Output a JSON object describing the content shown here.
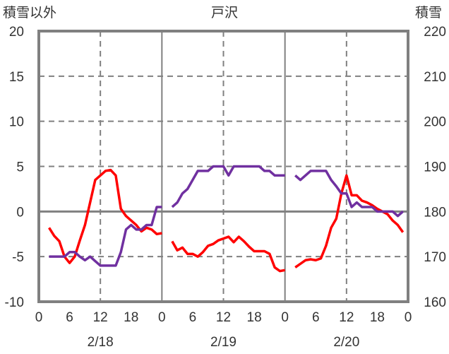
{
  "chart_data": {
    "type": "line",
    "title": "戸沢",
    "left_axis_label": "積雪以外",
    "right_axis_label": "積雪",
    "left_ylim": [
      -10,
      20
    ],
    "right_ylim": [
      160,
      220
    ],
    "left_ticks": [
      "20",
      "15",
      "10",
      "5",
      "0",
      "-5",
      "-10"
    ],
    "right_ticks": [
      "220",
      "210",
      "200",
      "190",
      "180",
      "170",
      "160"
    ],
    "x_ticks": [
      "0",
      "6",
      "12",
      "18",
      "0",
      "6",
      "12",
      "18",
      "0",
      "6",
      "12",
      "18",
      "0"
    ],
    "day_labels": [
      "2/18",
      "2/19",
      "2/20"
    ],
    "xlim_hours": [
      0,
      72
    ],
    "series": [
      {
        "name": "積雪以外",
        "axis": "left",
        "color": "#ff0000",
        "segments": [
          {
            "start": 2,
            "values": [
              -1.8,
              -2.7,
              -3.3,
              -5.0,
              -5.7,
              -5.0,
              -3.2,
              -1.5,
              1.0,
              3.5,
              4.0,
              4.5,
              4.6,
              4.0,
              0.3,
              -0.5,
              -1.0,
              -1.5,
              -2.2,
              -1.8,
              -2.0,
              -2.5,
              -2.4
            ]
          },
          {
            "start": 26,
            "values": [
              -3.3,
              -4.3,
              -4.0,
              -4.7,
              -4.7,
              -5.0,
              -4.5,
              -3.8,
              -3.6,
              -3.2,
              -3.0,
              -2.8,
              -3.4,
              -2.8,
              -3.3,
              -3.9,
              -4.4,
              -4.4,
              -4.4,
              -4.7,
              -6.2,
              -6.6,
              -6.5
            ]
          },
          {
            "start": 50,
            "values": [
              -6.2,
              -5.8,
              -5.4,
              -5.3,
              -5.4,
              -5.2,
              -3.8,
              -1.8,
              -0.8,
              2.0,
              4.0,
              1.8,
              1.8,
              1.2,
              1.0,
              0.7,
              0.3,
              0.0,
              -0.3,
              -1.0,
              -1.5,
              -2.3
            ]
          }
        ]
      },
      {
        "name": "積雪",
        "axis": "right",
        "color": "#7030a0",
        "segments": [
          {
            "start": 2,
            "values": [
              170,
              170,
              170,
              170,
              171,
              171,
              170,
              169.2,
              170,
              169,
              168,
              168,
              168,
              168,
              171,
              176,
              177,
              176,
              176,
              177,
              177,
              181,
              181
            ]
          },
          {
            "start": 26,
            "values": [
              181,
              182,
              184,
              185,
              187,
              189,
              189,
              189,
              190,
              190,
              190,
              188,
              190,
              190,
              190,
              190,
              190,
              190,
              189,
              189,
              188,
              188,
              188
            ]
          },
          {
            "start": 50,
            "values": [
              188,
              187,
              188,
              189,
              189,
              189,
              189,
              187,
              185.6,
              184,
              184,
              181,
              182,
              181,
              181,
              181,
              180,
              180,
              180,
              180,
              179,
              180
            ]
          }
        ]
      }
    ]
  }
}
